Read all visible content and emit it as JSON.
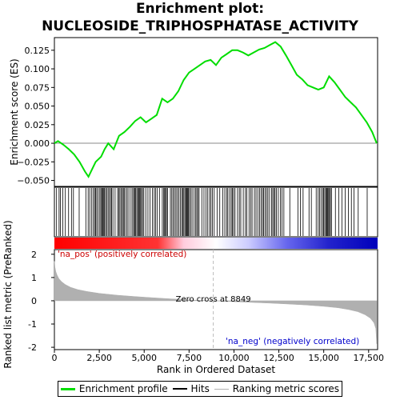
{
  "title_line1": "Enrichment plot:",
  "title_line2": "NUCLEOSIDE_TRIPHOSPHATASE_ACTIVITY",
  "chart_data": [
    {
      "type": "line",
      "name": "enrichment-profile",
      "ylabel": "Enrichment score (ES)",
      "ylim": [
        -0.058,
        0.142
      ],
      "xlim": [
        0,
        18000
      ],
      "yticks": [
        -0.05,
        -0.025,
        0.0,
        0.025,
        0.05,
        0.075,
        0.1,
        0.125
      ],
      "ytick_labels": [
        "−0.050",
        "−0.025",
        "0.000",
        "0.025",
        "0.050",
        "0.075",
        "0.100",
        "0.125"
      ],
      "grid": false,
      "x": [
        0,
        200,
        500,
        800,
        1100,
        1400,
        1700,
        1900,
        2100,
        2300,
        2600,
        2800,
        3000,
        3300,
        3600,
        3900,
        4200,
        4500,
        4800,
        5100,
        5400,
        5700,
        6000,
        6300,
        6600,
        6900,
        7200,
        7500,
        7800,
        8100,
        8400,
        8700,
        9000,
        9300,
        9600,
        9900,
        10200,
        10500,
        10800,
        11100,
        11400,
        11700,
        12000,
        12300,
        12600,
        12900,
        13200,
        13500,
        13800,
        14100,
        14400,
        14700,
        15000,
        15300,
        15600,
        15900,
        16200,
        16500,
        16800,
        17100,
        17400,
        17700,
        17950
      ],
      "y": [
        0.0,
        0.003,
        -0.002,
        -0.008,
        -0.015,
        -0.025,
        -0.038,
        -0.045,
        -0.035,
        -0.025,
        -0.018,
        -0.008,
        0.0,
        -0.008,
        0.01,
        0.015,
        0.022,
        0.03,
        0.035,
        0.028,
        0.033,
        0.038,
        0.06,
        0.055,
        0.06,
        0.07,
        0.085,
        0.095,
        0.1,
        0.105,
        0.11,
        0.112,
        0.105,
        0.115,
        0.12,
        0.125,
        0.125,
        0.122,
        0.118,
        0.122,
        0.126,
        0.128,
        0.132,
        0.136,
        0.13,
        0.118,
        0.105,
        0.092,
        0.086,
        0.078,
        0.075,
        0.072,
        0.075,
        0.09,
        0.082,
        0.072,
        0.062,
        0.055,
        0.048,
        0.038,
        0.028,
        0.015,
        0.0
      ],
      "color": "#00dd00"
    },
    {
      "type": "scatter",
      "name": "hits",
      "hit_ranks": [
        120,
        260,
        330,
        470,
        610,
        790,
        950,
        1060,
        1380,
        1750,
        1880,
        1970,
        2080,
        2170,
        2240,
        2300,
        2360,
        2440,
        2530,
        2590,
        2640,
        2690,
        2730,
        2790,
        2850,
        2910,
        2990,
        3060,
        3130,
        3180,
        3260,
        3380,
        3520,
        3590,
        3650,
        3720,
        3790,
        3840,
        3900,
        3980,
        4060,
        4150,
        4270,
        4360,
        4420,
        4480,
        4530,
        4590,
        4650,
        4690,
        4750,
        4800,
        4850,
        4910,
        4980,
        5090,
        5210,
        5330,
        5460,
        5560,
        5630,
        5720,
        5850,
        6010,
        6090,
        6140,
        6190,
        6240,
        6300,
        6460,
        6540,
        6610,
        6690,
        6770,
        6850,
        6930,
        7010,
        7090,
        7150,
        7210,
        7270,
        7330,
        7370,
        7420,
        7470,
        7520,
        7590,
        7670,
        7780,
        7870,
        7930,
        7990,
        8060,
        8210,
        8330,
        8440,
        8540,
        8640,
        8720,
        8800,
        8900,
        9060,
        9210,
        9380,
        9490,
        9590,
        9660,
        9760,
        9850,
        9910,
        9980,
        10060,
        10200,
        10300,
        10380,
        10520,
        10640,
        10720,
        10840,
        10930,
        11010,
        11140,
        11230,
        11330,
        11430,
        11510,
        11590,
        11650,
        11730,
        11810,
        11890,
        11980,
        12090,
        12160,
        12230,
        12290,
        12360,
        12470,
        12590,
        12680,
        12780,
        13110,
        13560,
        13700,
        13850,
        14180,
        14310,
        14580,
        14690,
        14770,
        14850,
        14940,
        15000,
        15060,
        15120,
        15170,
        15220,
        15270,
        15320,
        15370,
        15430,
        15650,
        15840,
        16010,
        16200,
        16370,
        16540,
        16680,
        16920,
        17420
      ]
    },
    {
      "type": "area",
      "name": "ranked-list-metric",
      "xlabel": "Rank in Ordered Dataset",
      "ylabel": "Ranked list metric (PreRanked)",
      "ylim": [
        -2.1,
        2.2
      ],
      "xlim": [
        0,
        18000
      ],
      "yticks": [
        -2,
        -1,
        0,
        1,
        2
      ],
      "ytick_labels": [
        "-2",
        "-1",
        "0",
        "1",
        "2"
      ],
      "xticks": [
        0,
        2500,
        5000,
        7500,
        10000,
        12500,
        15000,
        17500
      ],
      "xtick_labels": [
        "0",
        "2,500",
        "5,000",
        "7,500",
        "10,000",
        "12,500",
        "15,000",
        "17,500"
      ],
      "x": [
        0,
        30,
        80,
        150,
        250,
        400,
        600,
        900,
        1300,
        1800,
        2500,
        3500,
        4500,
        5500,
        6500,
        7500,
        8849,
        10000,
        11000,
        12000,
        13000,
        14000,
        15000,
        15800,
        16400,
        16900,
        17300,
        17600,
        17800,
        17900,
        17950
      ],
      "y": [
        1.7,
        1.45,
        1.25,
        1.1,
        0.95,
        0.82,
        0.7,
        0.58,
        0.48,
        0.4,
        0.32,
        0.24,
        0.18,
        0.13,
        0.08,
        0.04,
        0.0,
        -0.04,
        -0.07,
        -0.1,
        -0.14,
        -0.18,
        -0.24,
        -0.3,
        -0.38,
        -0.47,
        -0.6,
        -0.75,
        -0.95,
        -1.2,
        -1.85
      ],
      "zero_cross_rank": 8849,
      "color": "#b0b0b0"
    }
  ],
  "annotations": {
    "pos_label": "'na_pos' (positively correlated)",
    "neg_label": "'na_neg' (negatively correlated)",
    "zero_cross": "Zero cross at 8849"
  },
  "legend": {
    "items": [
      {
        "label": "Enrichment profile",
        "color": "#00dd00"
      },
      {
        "label": "Hits",
        "color": "#000000"
      },
      {
        "label": "Ranking metric scores",
        "color": "#b0b0b0"
      }
    ]
  },
  "colors": {
    "pos_band": "#ff0000",
    "neg_band": "#0000ff",
    "pos_text": "#cc0000",
    "neg_text": "#0000cc",
    "zero_line": "#bbbbbb"
  }
}
